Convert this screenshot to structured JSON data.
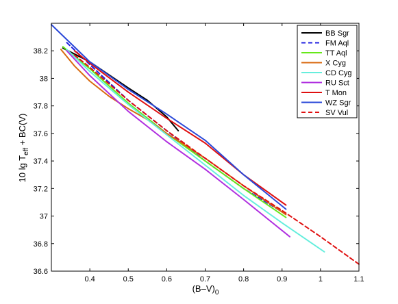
{
  "chart_data": {
    "type": "line",
    "xlabel": "(B–V)",
    "xlabel_sub": "0",
    "ylabel_parts": [
      "10 lg T",
      "eff",
      " + BC(V)"
    ],
    "xlim": [
      0.3,
      1.1
    ],
    "ylim": [
      36.6,
      38.4
    ],
    "xticks": [
      0.4,
      0.5,
      0.6,
      0.7,
      0.8,
      0.9,
      1,
      1.1
    ],
    "xtick_labels": [
      "0.4",
      "0.5",
      "0.6",
      "0.7",
      "0.8",
      "0.9",
      "1",
      "1.1"
    ],
    "yticks": [
      36.6,
      36.8,
      37.0,
      37.2,
      37.4,
      37.6,
      37.8,
      38.0,
      38.2
    ],
    "ytick_labels": [
      "36.6",
      "36.8",
      "37",
      "37.2",
      "37.4",
      "37.6",
      "37.8",
      "38",
      "38.2"
    ],
    "grid": false,
    "legend_position": "top-right",
    "series": [
      {
        "name": "BB Sgr",
        "color": "#000000",
        "dash": "solid",
        "x": [
          0.33,
          0.4,
          0.5,
          0.55,
          0.6,
          0.63
        ],
        "y": [
          38.22,
          38.12,
          37.93,
          37.84,
          37.72,
          37.62
        ]
      },
      {
        "name": "FM Aql",
        "color": "#2020e0",
        "dash": "dashed",
        "x": [
          0.34,
          0.4,
          0.5,
          0.6,
          0.7,
          0.8,
          0.9
        ],
        "y": [
          38.26,
          38.1,
          37.84,
          37.62,
          37.4,
          37.2,
          37.03
        ]
      },
      {
        "name": "TT Aql",
        "color": "#66e81a",
        "dash": "solid",
        "x": [
          0.33,
          0.4,
          0.5,
          0.6,
          0.7,
          0.8,
          0.91
        ],
        "y": [
          38.23,
          38.07,
          37.82,
          37.6,
          37.4,
          37.2,
          36.99
        ]
      },
      {
        "name": "X Cyg",
        "color": "#d96a10",
        "dash": "solid",
        "x": [
          0.325,
          0.36,
          0.4,
          0.45,
          0.5,
          0.55,
          0.6,
          0.7,
          0.8,
          0.91
        ],
        "y": [
          38.21,
          38.09,
          37.98,
          37.87,
          37.78,
          37.7,
          37.6,
          37.42,
          37.22,
          37.01
        ]
      },
      {
        "name": "CD Cyg",
        "color": "#66eedd",
        "dash": "solid",
        "x": [
          0.34,
          0.4,
          0.5,
          0.6,
          0.7,
          0.8,
          0.9,
          1.01
        ],
        "y": [
          38.21,
          38.05,
          37.81,
          37.59,
          37.37,
          37.15,
          36.95,
          36.74
        ]
      },
      {
        "name": "RU Sct",
        "color": "#b030e0",
        "dash": "solid",
        "x": [
          0.34,
          0.4,
          0.45,
          0.5,
          0.6,
          0.7,
          0.8,
          0.92
        ],
        "y": [
          38.2,
          38.02,
          37.89,
          37.76,
          37.54,
          37.34,
          37.12,
          36.85
        ]
      },
      {
        "name": "T Mon",
        "color": "#e01010",
        "dash": "solid",
        "x": [
          0.36,
          0.4,
          0.5,
          0.6,
          0.7,
          0.8,
          0.91
        ],
        "y": [
          38.2,
          38.11,
          37.9,
          37.71,
          37.53,
          37.3,
          37.08
        ]
      },
      {
        "name": "WZ Sgr",
        "color": "#2a48d8",
        "dash": "solid",
        "x": [
          0.3,
          0.4,
          0.5,
          0.6,
          0.7,
          0.8,
          0.91
        ],
        "y": [
          38.39,
          38.12,
          37.92,
          37.74,
          37.55,
          37.3,
          37.05
        ]
      },
      {
        "name": "SV Vul",
        "color": "#e01010",
        "dash": "dashed",
        "x": [
          0.36,
          0.4,
          0.5,
          0.6,
          0.7,
          0.8,
          0.9,
          1.0,
          1.1
        ],
        "y": [
          38.17,
          38.08,
          37.84,
          37.62,
          37.42,
          37.22,
          37.04,
          36.85,
          36.65
        ]
      }
    ]
  }
}
